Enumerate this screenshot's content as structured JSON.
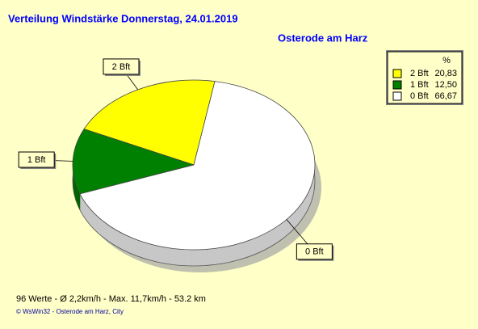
{
  "chart_data": {
    "type": "pie",
    "title": "Verteilung Windstärke  Donnerstag, 24.01.2019",
    "subtitle": "Osterode am Harz",
    "categories": [
      "2 Bft",
      "1 Bft",
      "0 Bft"
    ],
    "values": [
      20.83,
      12.5,
      66.67
    ],
    "value_labels": [
      "20,83",
      "12,50",
      "66,67"
    ],
    "colors": [
      "#ffff00",
      "#008000",
      "#ffffff"
    ],
    "legend_title": "%",
    "legend": "top-right",
    "footer": "96 Werte   -   Ø 2,2km/h  -  Max. 11,7km/h   -   53.2 km",
    "credit": "© WsWin32  -  Osterode am Harz, City"
  }
}
